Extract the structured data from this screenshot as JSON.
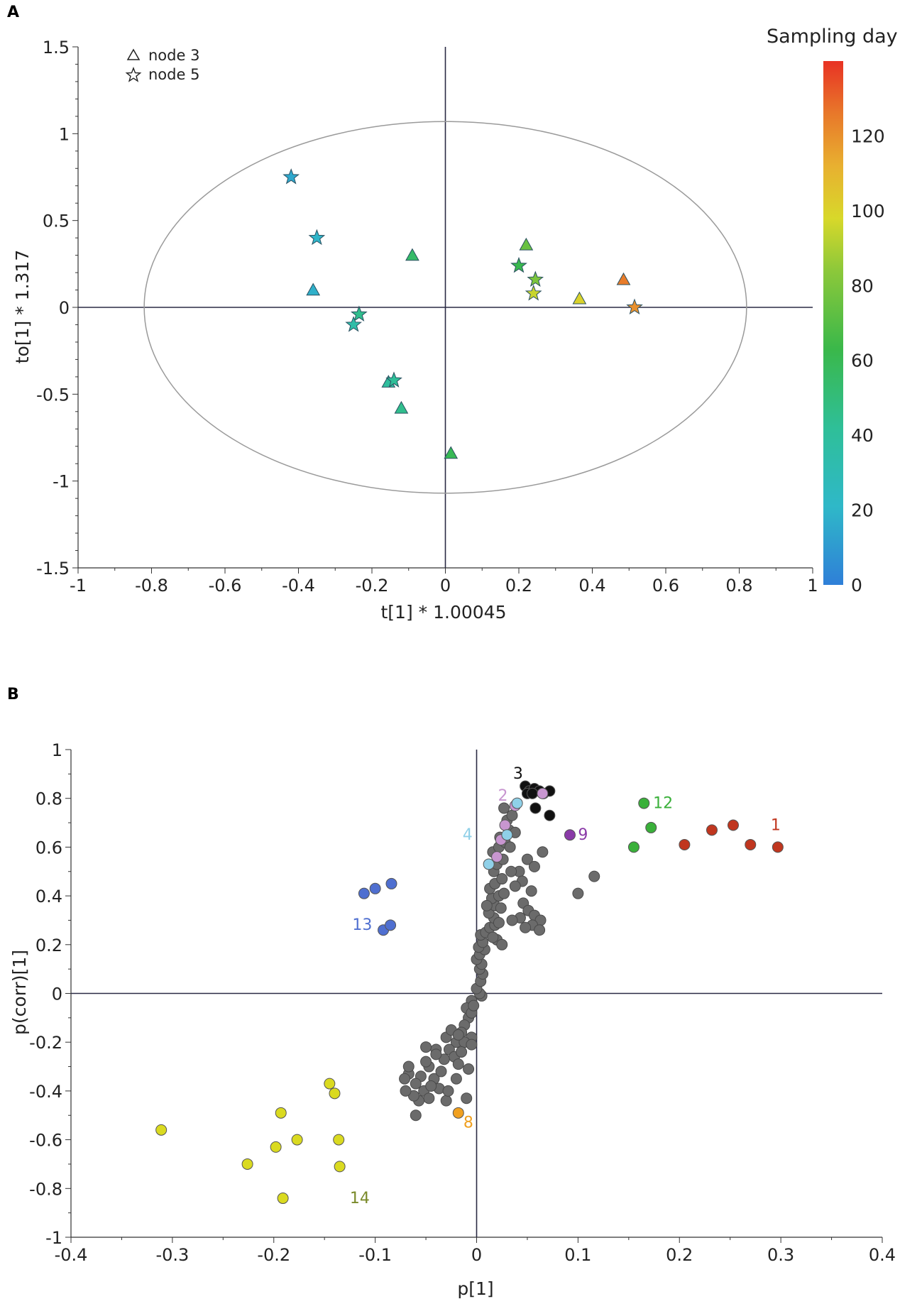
{
  "chart_data": [
    {
      "panel": "A",
      "type": "scatter",
      "xlabel": "t[1] * 1.00045",
      "ylabel": "to[1] * 1.317",
      "xlim": [
        -1,
        1
      ],
      "ylim": [
        -1.5,
        1.5
      ],
      "x_ticks": [
        "-1",
        "-0.8",
        "-0.6",
        "-0.4",
        "-0.2",
        "0",
        "0.2",
        "0.4",
        "0.6",
        "0.8",
        "1"
      ],
      "y_ticks": [
        "1.5",
        "1",
        "0.5",
        "0",
        "-0.5",
        "-1",
        "-1.5"
      ],
      "legend": [
        {
          "marker": "triangle",
          "label": "node 3"
        },
        {
          "marker": "star",
          "label": "node 5"
        }
      ],
      "colorbar": {
        "title": "Sampling day",
        "min": 0,
        "max": 140,
        "ticks": [
          "120",
          "100",
          "80",
          "60",
          "40",
          "20",
          "0"
        ]
      },
      "ellipse": {
        "rx": 0.82,
        "ry": 1.07
      },
      "points": [
        {
          "x": -0.42,
          "y": 0.75,
          "marker": "star",
          "day": 15
        },
        {
          "x": -0.35,
          "y": 0.4,
          "marker": "star",
          "day": 20
        },
        {
          "x": -0.36,
          "y": 0.1,
          "marker": "triangle",
          "day": 18
        },
        {
          "x": -0.09,
          "y": 0.3,
          "marker": "triangle",
          "day": 55
        },
        {
          "x": -0.235,
          "y": -0.04,
          "marker": "star",
          "day": 45
        },
        {
          "x": -0.25,
          "y": -0.1,
          "marker": "star",
          "day": 35
        },
        {
          "x": -0.155,
          "y": -0.43,
          "marker": "triangle",
          "day": 40
        },
        {
          "x": -0.14,
          "y": -0.42,
          "marker": "star",
          "day": 42
        },
        {
          "x": -0.12,
          "y": -0.58,
          "marker": "triangle",
          "day": 45
        },
        {
          "x": 0.015,
          "y": -0.84,
          "marker": "triangle",
          "day": 60
        },
        {
          "x": 0.22,
          "y": 0.36,
          "marker": "triangle",
          "day": 75
        },
        {
          "x": 0.2,
          "y": 0.24,
          "marker": "star",
          "day": 62
        },
        {
          "x": 0.245,
          "y": 0.16,
          "marker": "star",
          "day": 80
        },
        {
          "x": 0.24,
          "y": 0.08,
          "marker": "star",
          "day": 95
        },
        {
          "x": 0.365,
          "y": 0.05,
          "marker": "triangle",
          "day": 100
        },
        {
          "x": 0.485,
          "y": 0.16,
          "marker": "triangle",
          "day": 125
        },
        {
          "x": 0.515,
          "y": 0.0,
          "marker": "star",
          "day": 120
        }
      ]
    },
    {
      "panel": "B",
      "type": "scatter",
      "xlabel": "p[1]",
      "ylabel": "p(corr)[1]",
      "xlim": [
        -0.4,
        0.4
      ],
      "ylim": [
        -1,
        1
      ],
      "x_ticks": [
        "-0.4",
        "-0.3",
        "-0.2",
        "-0.1",
        "0",
        "0.1",
        "0.2",
        "0.3",
        "0.4"
      ],
      "y_ticks": [
        "1",
        "0.8",
        "0.6",
        "0.4",
        "0.2",
        "0",
        "-0.2",
        "-0.4",
        "-0.6",
        "-0.8",
        "-1"
      ],
      "colors": {
        "gray": "#6b6b6b",
        "red": "#c0361f",
        "green": "#3ab03a",
        "purple": "#8a3aa8",
        "pink": "#c896d0",
        "light_blue": "#8fd0e8",
        "black": "#111111",
        "blue": "#4f6fd0",
        "orange": "#f0a020",
        "yellow": "#dada20"
      },
      "groups": [
        {
          "label": "1",
          "color": "#c0361f",
          "points": [
            [
              0.205,
              0.61
            ],
            [
              0.232,
              0.67
            ],
            [
              0.253,
              0.69
            ],
            [
              0.27,
              0.61
            ],
            [
              0.297,
              0.6
            ]
          ]
        },
        {
          "label": "12",
          "color": "#3ab03a",
          "points": [
            [
              0.165,
              0.78
            ],
            [
              0.172,
              0.68
            ],
            [
              0.155,
              0.6
            ]
          ]
        },
        {
          "label": "9",
          "color": "#8a3aa8",
          "points": [
            [
              0.092,
              0.65
            ]
          ]
        },
        {
          "label": "3",
          "color": "#111111",
          "points": [
            [
              0.048,
              0.85
            ],
            [
              0.052,
              0.83
            ],
            [
              0.057,
              0.84
            ],
            [
              0.062,
              0.83
            ],
            [
              0.066,
              0.82
            ],
            [
              0.072,
              0.83
            ],
            [
              0.05,
              0.82
            ],
            [
              0.058,
              0.76
            ],
            [
              0.072,
              0.73
            ],
            [
              0.055,
              0.82
            ]
          ]
        },
        {
          "label": "2",
          "color": "#c896d0",
          "points": [
            [
              0.038,
              0.77
            ],
            [
              0.028,
              0.69
            ],
            [
              0.024,
              0.63
            ],
            [
              0.065,
              0.82
            ],
            [
              0.02,
              0.56
            ]
          ]
        },
        {
          "label": "4",
          "color": "#8fd0e8",
          "points": [
            [
              0.04,
              0.78
            ],
            [
              0.03,
              0.65
            ],
            [
              0.012,
              0.53
            ]
          ]
        },
        {
          "label": "13",
          "color": "#4f6fd0",
          "points": [
            [
              -0.092,
              0.26
            ],
            [
              -0.085,
              0.28
            ],
            [
              -0.111,
              0.41
            ],
            [
              -0.1,
              0.43
            ],
            [
              -0.084,
              0.45
            ]
          ]
        },
        {
          "label": "8",
          "color": "#f0a020",
          "points": [
            [
              -0.018,
              -0.49
            ]
          ]
        },
        {
          "label": "14",
          "color": "#dada20",
          "points": [
            [
              -0.311,
              -0.56
            ],
            [
              -0.193,
              -0.49
            ],
            [
              -0.198,
              -0.63
            ],
            [
              -0.177,
              -0.6
            ],
            [
              -0.226,
              -0.7
            ],
            [
              -0.191,
              -0.84
            ],
            [
              -0.145,
              -0.37
            ],
            [
              -0.14,
              -0.41
            ],
            [
              -0.136,
              -0.6
            ],
            [
              -0.135,
              -0.71
            ]
          ]
        }
      ],
      "gray_points": [
        [
          0.005,
          -0.01
        ],
        [
          0.003,
          0.0
        ],
        [
          0.0,
          0.02
        ],
        [
          0.004,
          0.05
        ],
        [
          0.006,
          0.08
        ],
        [
          0.003,
          0.1
        ],
        [
          0.005,
          0.12
        ],
        [
          0.0,
          0.14
        ],
        [
          0.003,
          0.16
        ],
        [
          0.008,
          0.18
        ],
        [
          0.002,
          0.19
        ],
        [
          0.006,
          0.21
        ],
        [
          0.004,
          0.24
        ],
        [
          0.009,
          0.25
        ],
        [
          0.013,
          0.27
        ],
        [
          0.018,
          0.28
        ],
        [
          0.017,
          0.31
        ],
        [
          0.022,
          0.29
        ],
        [
          0.02,
          0.22
        ],
        [
          0.025,
          0.2
        ],
        [
          0.016,
          0.23
        ],
        [
          0.012,
          0.33
        ],
        [
          0.018,
          0.36
        ],
        [
          0.015,
          0.39
        ],
        [
          0.022,
          0.4
        ],
        [
          0.027,
          0.41
        ],
        [
          0.013,
          0.43
        ],
        [
          0.018,
          0.45
        ],
        [
          0.025,
          0.47
        ],
        [
          0.017,
          0.5
        ],
        [
          0.02,
          0.53
        ],
        [
          0.026,
          0.55
        ],
        [
          0.016,
          0.58
        ],
        [
          0.022,
          0.6
        ],
        [
          0.028,
          0.62
        ],
        [
          0.032,
          0.67
        ],
        [
          0.03,
          0.71
        ],
        [
          0.027,
          0.76
        ],
        [
          0.035,
          0.73
        ],
        [
          0.038,
          0.66
        ],
        [
          0.042,
          0.5
        ],
        [
          0.045,
          0.46
        ],
        [
          0.038,
          0.44
        ],
        [
          0.05,
          0.55
        ],
        [
          0.057,
          0.52
        ],
        [
          0.054,
          0.42
        ],
        [
          0.046,
          0.37
        ],
        [
          0.051,
          0.34
        ],
        [
          0.057,
          0.32
        ],
        [
          0.063,
          0.3
        ],
        [
          0.055,
          0.28
        ],
        [
          0.062,
          0.26
        ],
        [
          0.043,
          0.31
        ],
        [
          0.048,
          0.27
        ],
        [
          0.035,
          0.3
        ],
        [
          0.065,
          0.58
        ],
        [
          0.1,
          0.41
        ],
        [
          0.116,
          0.48
        ],
        [
          0.033,
          0.6
        ],
        [
          0.023,
          0.64
        ],
        [
          0.034,
          0.5
        ],
        [
          0.01,
          0.36
        ],
        [
          0.024,
          0.35
        ],
        [
          -0.005,
          -0.03
        ],
        [
          -0.01,
          -0.06
        ],
        [
          -0.008,
          -0.1
        ],
        [
          -0.012,
          -0.13
        ],
        [
          -0.015,
          -0.16
        ],
        [
          -0.005,
          -0.18
        ],
        [
          -0.02,
          -0.2
        ],
        [
          -0.027,
          -0.23
        ],
        [
          -0.022,
          -0.26
        ],
        [
          -0.018,
          -0.29
        ],
        [
          -0.012,
          -0.2
        ],
        [
          -0.03,
          -0.18
        ],
        [
          -0.025,
          -0.15
        ],
        [
          -0.005,
          -0.08
        ],
        [
          -0.003,
          -0.05
        ],
        [
          -0.032,
          -0.27
        ],
        [
          -0.04,
          -0.23
        ],
        [
          -0.05,
          -0.22
        ],
        [
          -0.047,
          -0.3
        ],
        [
          -0.055,
          -0.34
        ],
        [
          -0.067,
          -0.33
        ],
        [
          -0.06,
          -0.37
        ],
        [
          -0.052,
          -0.4
        ],
        [
          -0.047,
          -0.43
        ],
        [
          -0.057,
          -0.44
        ],
        [
          -0.06,
          -0.5
        ],
        [
          -0.067,
          -0.3
        ],
        [
          -0.071,
          -0.35
        ],
        [
          -0.05,
          -0.28
        ],
        [
          -0.042,
          -0.35
        ],
        [
          -0.037,
          -0.39
        ],
        [
          -0.03,
          -0.44
        ],
        [
          -0.01,
          -0.43
        ],
        [
          -0.008,
          -0.31
        ],
        [
          -0.02,
          -0.35
        ],
        [
          -0.04,
          -0.25
        ],
        [
          -0.035,
          -0.32
        ],
        [
          -0.015,
          -0.24
        ],
        [
          -0.045,
          -0.38
        ],
        [
          -0.028,
          -0.4
        ],
        [
          -0.062,
          -0.42
        ],
        [
          -0.07,
          -0.4
        ],
        [
          -0.005,
          -0.21
        ],
        [
          -0.018,
          -0.17
        ]
      ]
    }
  ]
}
